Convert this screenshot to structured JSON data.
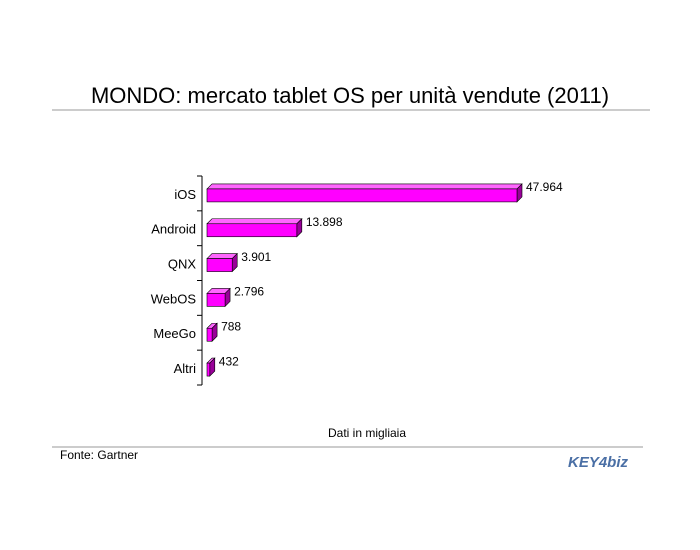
{
  "chart_data": {
    "type": "hbar",
    "title": "MONDO: mercato tablet OS per unità vendute (2011)",
    "categories": [
      "iOS",
      "Android",
      "QNX",
      "WebOS",
      "MeeGo",
      "Altri"
    ],
    "values": [
      47964,
      13898,
      3901,
      2796,
      788,
      432
    ],
    "value_labels": [
      "47.964",
      "13.898",
      "3.901",
      "2.796",
      "788",
      "432"
    ],
    "color": "#ff00ff",
    "note": "Dati in migliaia",
    "source": "Fonte: Gartner",
    "logo": "KEY4biz"
  }
}
